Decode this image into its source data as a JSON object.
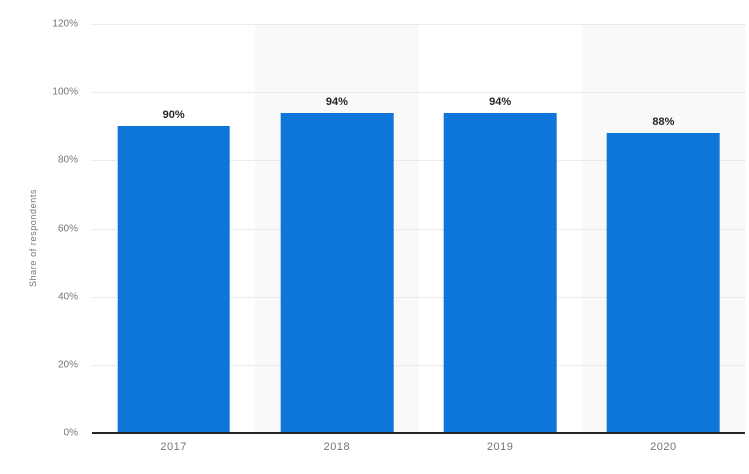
{
  "chart_data": {
    "type": "bar",
    "title": "",
    "categories": [
      "2017",
      "2018",
      "2019",
      "2020"
    ],
    "values": [
      90,
      94,
      94,
      88
    ],
    "value_labels": [
      "90%",
      "94%",
      "94%",
      "88%"
    ],
    "xlabel": "",
    "ylabel": "Share of respondents",
    "ylim": [
      0,
      120
    ],
    "yticks": [
      {
        "value": 0,
        "label": "0%"
      },
      {
        "value": 20,
        "label": "20%"
      },
      {
        "value": 40,
        "label": "40%"
      },
      {
        "value": 60,
        "label": "60%"
      },
      {
        "value": 80,
        "label": "80%"
      },
      {
        "value": 100,
        "label": "100%"
      },
      {
        "value": 120,
        "label": "120%"
      }
    ],
    "grid": "horizontal-dotted",
    "legend": "none",
    "bar_width_ratio": 0.69,
    "striped_background": "alternate category columns shaded",
    "colors": {
      "bar": "#0d76d8",
      "band": "#f9f9f9",
      "gridline": "#d9d9d9",
      "axis_line": "#262626",
      "tick_text": "#757575",
      "value_label_text": "#262626",
      "background": "#ffffff"
    }
  }
}
